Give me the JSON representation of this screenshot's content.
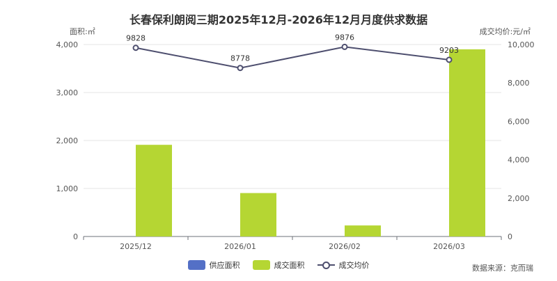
{
  "chart_data": {
    "type": "bar",
    "title": "长春保利朗阅三期2025年12月-2026年12月月度供求数据",
    "ylabel_left": "面积:㎡",
    "ylabel_right": "成交均价:元/㎡",
    "categories": [
      "2025/12",
      "2026/01",
      "2026/02",
      "2026/03"
    ],
    "ylim_left": [
      0,
      4000
    ],
    "yticks_left": [
      "0",
      "1,000",
      "2,000",
      "3,000",
      "4,000"
    ],
    "ylim_right": [
      0,
      10000
    ],
    "yticks_right": [
      "0",
      "2,000",
      "4,000",
      "6,000",
      "8,000",
      "10,000"
    ],
    "series": [
      {
        "name": "供应面积",
        "type": "bar",
        "axis": "left",
        "color": "#5470c6",
        "values": [
          0,
          0,
          0,
          0
        ]
      },
      {
        "name": "成交面积",
        "type": "bar",
        "axis": "left",
        "color": "#b5d633",
        "values": [
          1910,
          905,
          230,
          3900
        ]
      },
      {
        "name": "成交均价",
        "type": "line",
        "axis": "right",
        "color": "#4d4e6e",
        "values": [
          9828,
          8778,
          9876,
          9203
        ],
        "labels": [
          "9828",
          "8778",
          "9876",
          "9203"
        ]
      }
    ],
    "grid": true,
    "legend": "bottom-center"
  },
  "source": "数据来源：克而瑞"
}
